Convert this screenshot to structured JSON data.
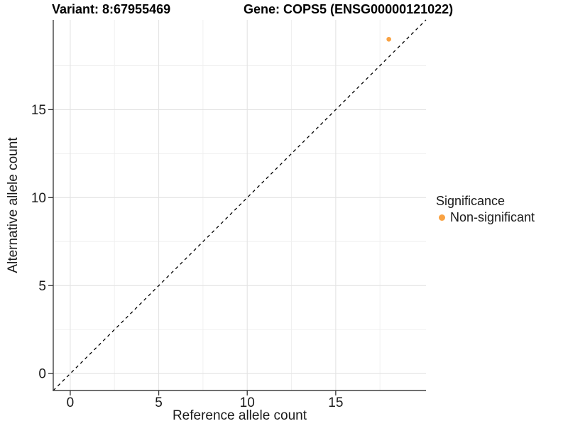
{
  "chart_data": {
    "type": "scatter",
    "title_left": "Variant: 8:67955469",
    "title_right": "Gene: COPS5 (ENSG00000121022)",
    "xlabel": "Reference allele count",
    "ylabel": "Alternative allele count",
    "xlim": [
      -0.96,
      20.1
    ],
    "ylim": [
      -0.96,
      20.1
    ],
    "x_major_ticks": [
      0,
      5,
      10,
      15
    ],
    "y_major_ticks": [
      0,
      5,
      10,
      15
    ],
    "x_minor_ticks": [
      2.5,
      7.5,
      12.5,
      17.5
    ],
    "y_minor_ticks": [
      2.5,
      7.5,
      12.5,
      17.5
    ],
    "grid": "major and minor, light grey on white",
    "reference_line": {
      "kind": "identity",
      "equation": "y = x",
      "style": "dashed",
      "color": "#000000"
    },
    "series": [
      {
        "name": "Non-significant",
        "color": "#F9A242",
        "points": [
          {
            "x": 18,
            "y": 19
          }
        ]
      }
    ],
    "legend": {
      "title": "Significance",
      "position": "right",
      "items": [
        {
          "label": "Non-significant",
          "color": "#F9A242"
        }
      ]
    }
  },
  "colors": {
    "point": "#F9A242",
    "grid_major": "#e3e3e3",
    "grid_minor": "#f0f0f0",
    "axis_line": "#404040",
    "tick_mark": "#333333",
    "text": "#1a1a1a"
  }
}
